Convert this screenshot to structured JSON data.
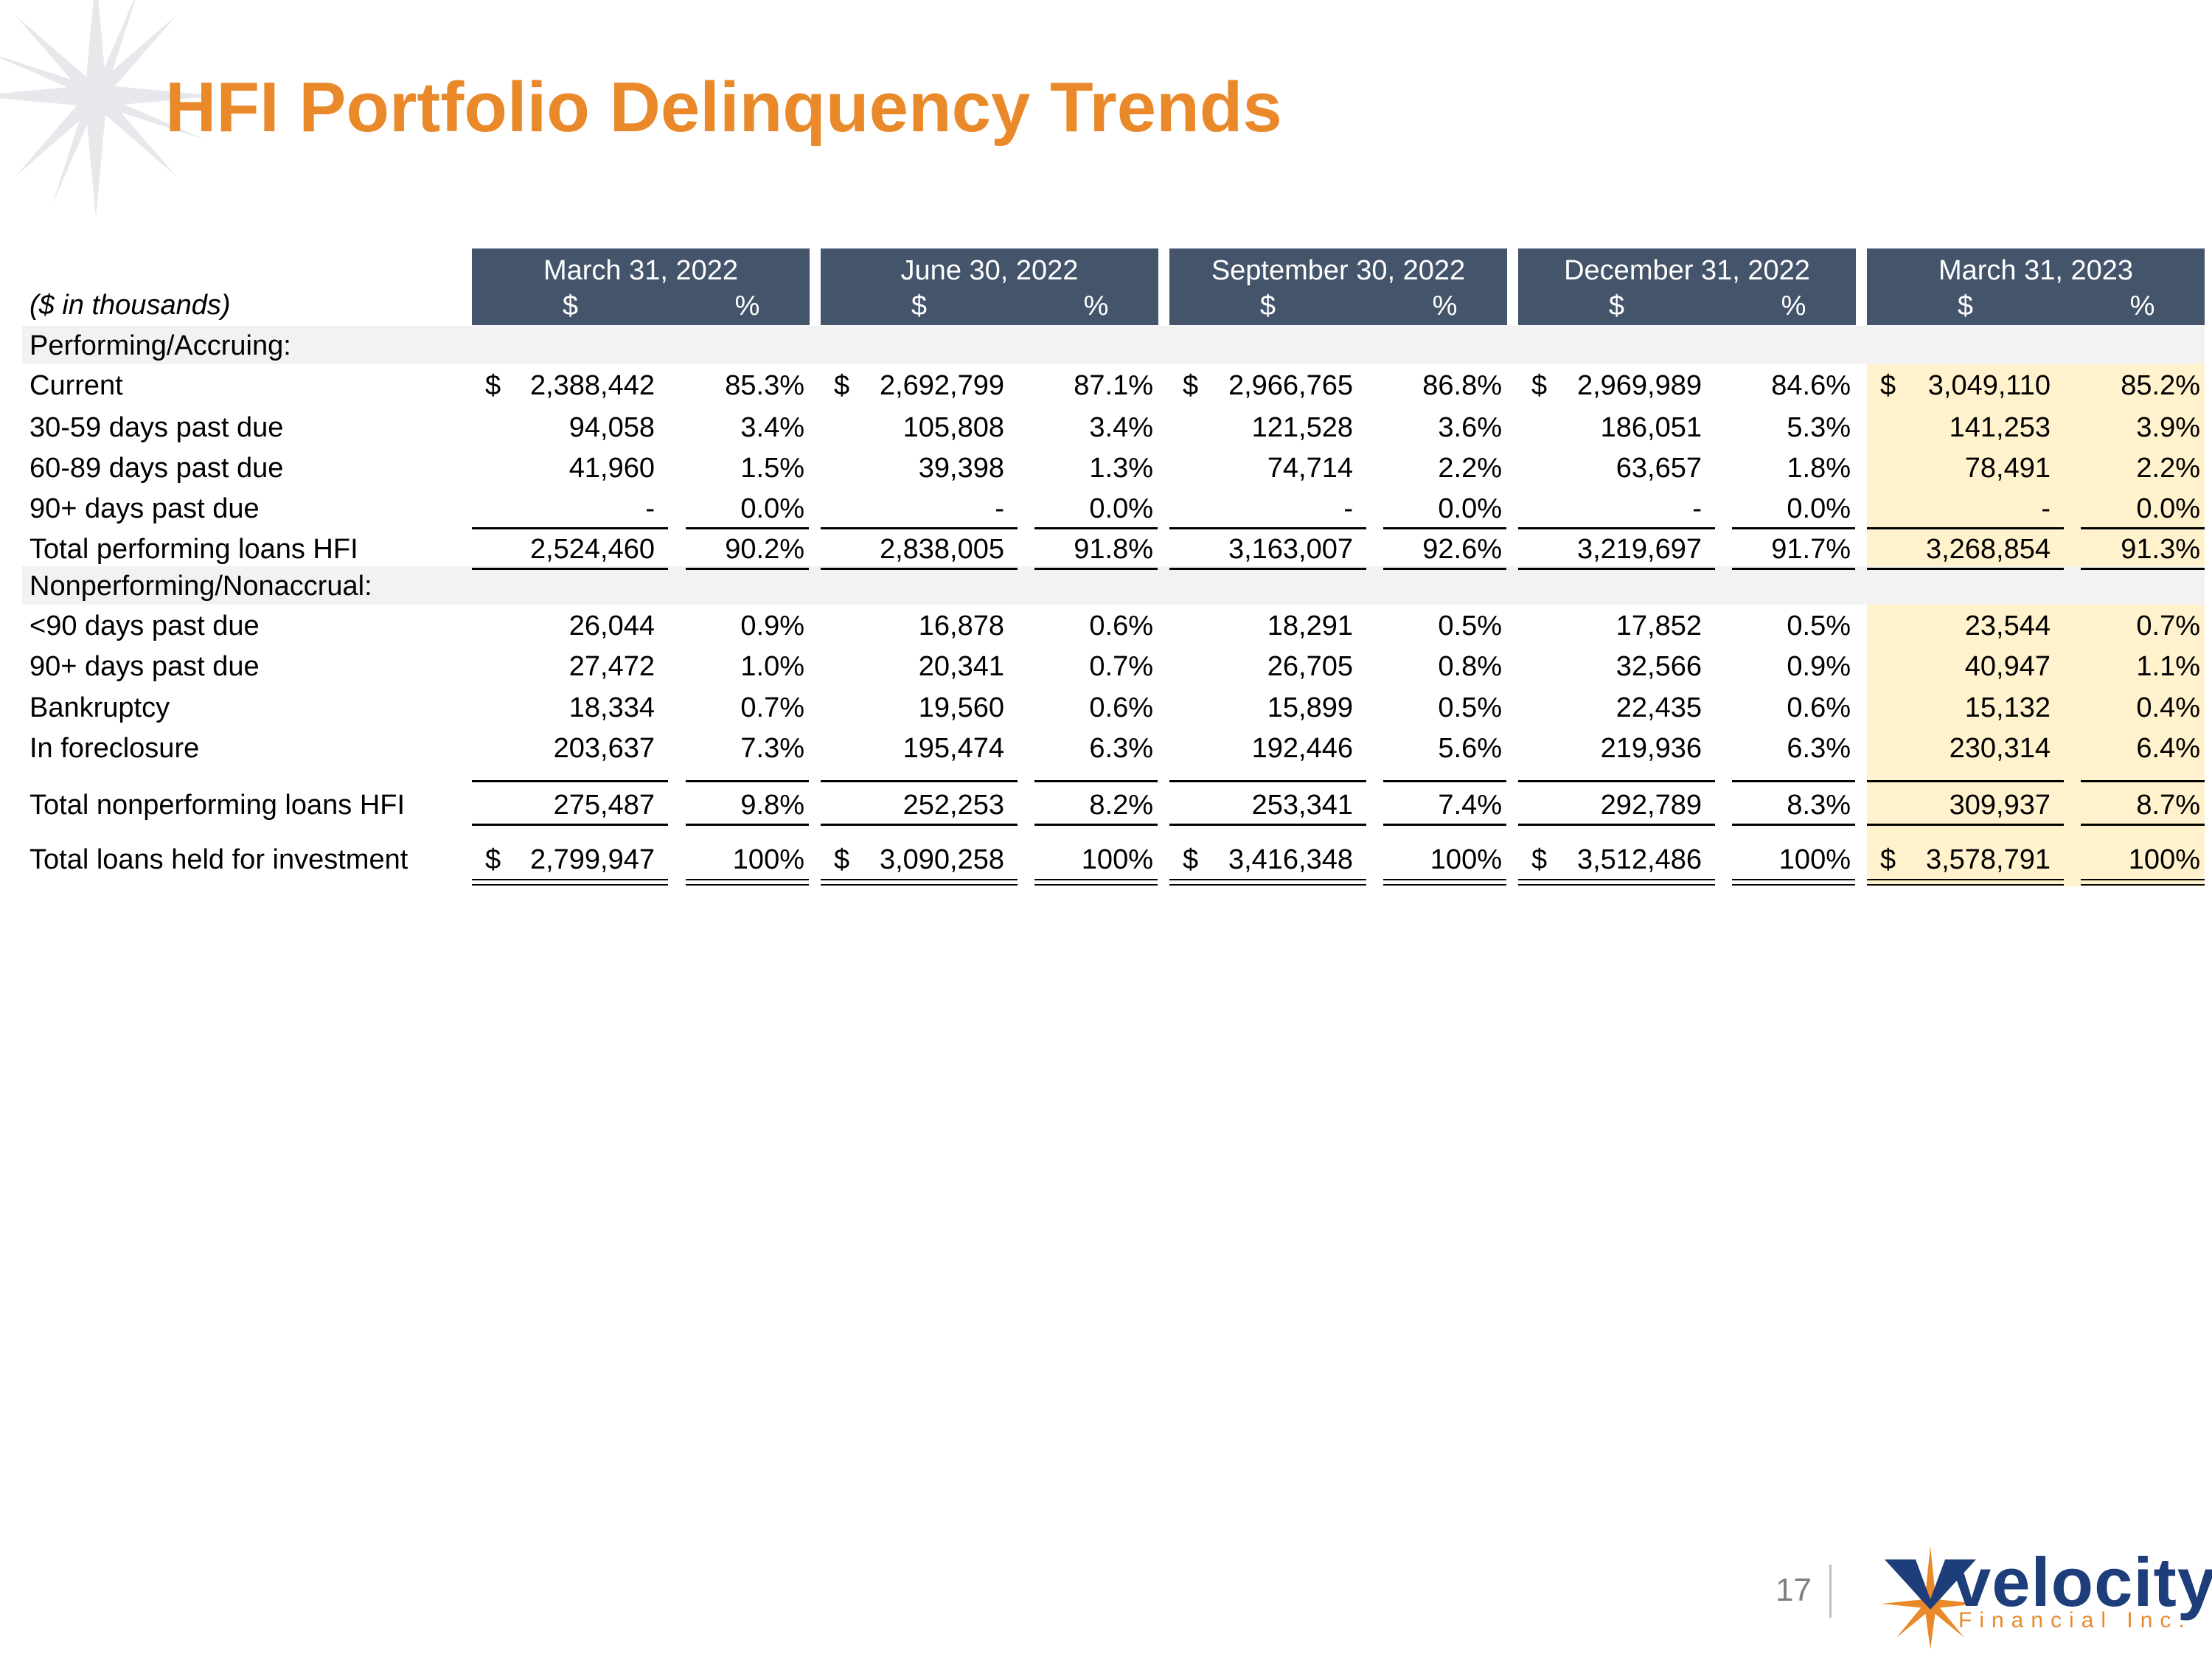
{
  "title": "HFI Portfolio Delinquency Trends",
  "units_label": "($ in thousands)",
  "periods": [
    "March 31, 2022",
    "June 30, 2022",
    "September 30, 2022",
    "December 31, 2022",
    "March 31, 2023"
  ],
  "col_dollar": "$",
  "col_pct": "%",
  "sections": {
    "performing": "Performing/Accruing:",
    "nonperforming": "Nonperforming/Nonaccrual:"
  },
  "rows": [
    {
      "label": "Current",
      "cells": [
        {
          "dollar": "$",
          "value": "2,388,442",
          "pct": "85.3%"
        },
        {
          "dollar": "$",
          "value": "2,692,799",
          "pct": "87.1%"
        },
        {
          "dollar": "$",
          "value": "2,966,765",
          "pct": "86.8%"
        },
        {
          "dollar": "$",
          "value": "2,969,989",
          "pct": "84.6%"
        },
        {
          "dollar": "$",
          "value": "3,049,110",
          "pct": "85.2%"
        }
      ]
    },
    {
      "label": "30-59 days past due",
      "cells": [
        {
          "dollar": "",
          "value": "94,058",
          "pct": "3.4%"
        },
        {
          "dollar": "",
          "value": "105,808",
          "pct": "3.4%"
        },
        {
          "dollar": "",
          "value": "121,528",
          "pct": "3.6%"
        },
        {
          "dollar": "",
          "value": "186,051",
          "pct": "5.3%"
        },
        {
          "dollar": "",
          "value": "141,253",
          "pct": "3.9%"
        }
      ]
    },
    {
      "label": "60-89 days past due",
      "cells": [
        {
          "dollar": "",
          "value": "41,960",
          "pct": "1.5%"
        },
        {
          "dollar": "",
          "value": "39,398",
          "pct": "1.3%"
        },
        {
          "dollar": "",
          "value": "74,714",
          "pct": "2.2%"
        },
        {
          "dollar": "",
          "value": "63,657",
          "pct": "1.8%"
        },
        {
          "dollar": "",
          "value": "78,491",
          "pct": "2.2%"
        }
      ]
    },
    {
      "label": "90+ days past due",
      "cells": [
        {
          "dollar": "",
          "value": "-",
          "pct": "0.0%"
        },
        {
          "dollar": "",
          "value": "-",
          "pct": "0.0%"
        },
        {
          "dollar": "",
          "value": "-",
          "pct": "0.0%"
        },
        {
          "dollar": "",
          "value": "-",
          "pct": "0.0%"
        },
        {
          "dollar": "",
          "value": "-",
          "pct": "0.0%"
        }
      ]
    },
    {
      "label": "Total performing loans HFI",
      "cells": [
        {
          "dollar": "",
          "value": "2,524,460",
          "pct": "90.2%"
        },
        {
          "dollar": "",
          "value": "2,838,005",
          "pct": "91.8%"
        },
        {
          "dollar": "",
          "value": "3,163,007",
          "pct": "92.6%"
        },
        {
          "dollar": "",
          "value": "3,219,697",
          "pct": "91.7%"
        },
        {
          "dollar": "",
          "value": "3,268,854",
          "pct": "91.3%"
        }
      ]
    },
    {
      "label": "<90 days past due",
      "cells": [
        {
          "dollar": "",
          "value": "26,044",
          "pct": "0.9%"
        },
        {
          "dollar": "",
          "value": "16,878",
          "pct": "0.6%"
        },
        {
          "dollar": "",
          "value": "18,291",
          "pct": "0.5%"
        },
        {
          "dollar": "",
          "value": "17,852",
          "pct": "0.5%"
        },
        {
          "dollar": "",
          "value": "23,544",
          "pct": "0.7%"
        }
      ]
    },
    {
      "label": "90+ days past due",
      "cells": [
        {
          "dollar": "",
          "value": "27,472",
          "pct": "1.0%"
        },
        {
          "dollar": "",
          "value": "20,341",
          "pct": "0.7%"
        },
        {
          "dollar": "",
          "value": "26,705",
          "pct": "0.8%"
        },
        {
          "dollar": "",
          "value": "32,566",
          "pct": "0.9%"
        },
        {
          "dollar": "",
          "value": "40,947",
          "pct": "1.1%"
        }
      ]
    },
    {
      "label": "Bankruptcy",
      "cells": [
        {
          "dollar": "",
          "value": "18,334",
          "pct": "0.7%"
        },
        {
          "dollar": "",
          "value": "19,560",
          "pct": "0.6%"
        },
        {
          "dollar": "",
          "value": "15,899",
          "pct": "0.5%"
        },
        {
          "dollar": "",
          "value": "22,435",
          "pct": "0.6%"
        },
        {
          "dollar": "",
          "value": "15,132",
          "pct": "0.4%"
        }
      ]
    },
    {
      "label": "In foreclosure",
      "cells": [
        {
          "dollar": "",
          "value": "203,637",
          "pct": "7.3%"
        },
        {
          "dollar": "",
          "value": "195,474",
          "pct": "6.3%"
        },
        {
          "dollar": "",
          "value": "192,446",
          "pct": "5.6%"
        },
        {
          "dollar": "",
          "value": "219,936",
          "pct": "6.3%"
        },
        {
          "dollar": "",
          "value": "230,314",
          "pct": "6.4%"
        }
      ]
    },
    {
      "label": "Total nonperforming loans HFI",
      "cells": [
        {
          "dollar": "",
          "value": "275,487",
          "pct": "9.8%"
        },
        {
          "dollar": "",
          "value": "252,253",
          "pct": "8.2%"
        },
        {
          "dollar": "",
          "value": "253,341",
          "pct": "7.4%"
        },
        {
          "dollar": "",
          "value": "292,789",
          "pct": "8.3%"
        },
        {
          "dollar": "",
          "value": "309,937",
          "pct": "8.7%"
        }
      ]
    },
    {
      "label": "Total loans held for investment",
      "cells": [
        {
          "dollar": "$",
          "value": "2,799,947",
          "pct": "100%"
        },
        {
          "dollar": "$",
          "value": "3,090,258",
          "pct": "100%"
        },
        {
          "dollar": "$",
          "value": "3,416,348",
          "pct": "100%"
        },
        {
          "dollar": "$",
          "value": "3,512,486",
          "pct": "100%"
        },
        {
          "dollar": "$",
          "value": "3,578,791",
          "pct": "100%"
        }
      ]
    }
  ],
  "footer": {
    "page_number": "17",
    "logo_word": "velocity",
    "logo_sub": "Financial Inc."
  },
  "colors": {
    "title": "#E9892A",
    "header_bg": "#44546A",
    "highlight": "#FFF2CC",
    "band": "#F2F2F2",
    "logo_blue": "#1D3E7A"
  }
}
